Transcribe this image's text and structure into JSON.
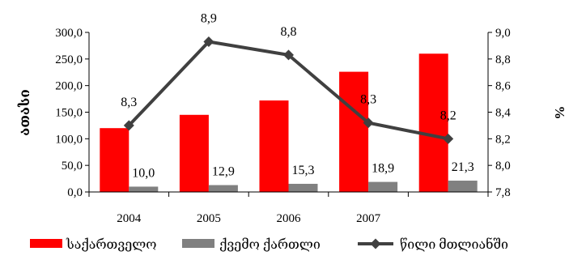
{
  "chart_data": {
    "type": "bar",
    "categories": [
      "2004",
      "2005",
      "2006",
      "2007",
      ""
    ],
    "series": [
      {
        "name": "საქართველო",
        "type": "bar",
        "axis": "left",
        "color": "#ff0000",
        "values": [
          120.0,
          145.0,
          172.0,
          226.0,
          260.0
        ],
        "labels": [
          "",
          "",
          "",
          "",
          ""
        ]
      },
      {
        "name": "ქვემო ქართლი",
        "type": "bar",
        "axis": "left",
        "color": "#808080",
        "values": [
          10.0,
          12.9,
          15.3,
          18.9,
          21.3
        ],
        "labels": [
          "10,0",
          "12,9",
          "15,3",
          "18,9",
          "21,3"
        ]
      },
      {
        "name": "წილი მთლიანში",
        "type": "line",
        "axis": "right",
        "color": "#404040",
        "values": [
          8.3,
          8.93,
          8.83,
          8.32,
          8.2
        ],
        "labels": [
          "8,3",
          "8,9",
          "8,8",
          "8,3",
          "8,2"
        ]
      }
    ],
    "left_axis": {
      "label": "ათასი",
      "min": 0,
      "max": 300,
      "ticks": [
        "0,0",
        "50,0",
        "100,0",
        "150,0",
        "200,0",
        "250,0",
        "300,0"
      ]
    },
    "right_axis": {
      "label": "%",
      "min": 7.8,
      "max": 9.0,
      "ticks": [
        "7,8",
        "8,0",
        "8,2",
        "8,4",
        "8,6",
        "8,8",
        "9,0"
      ]
    },
    "legend_position": "bottom",
    "grid": false
  }
}
